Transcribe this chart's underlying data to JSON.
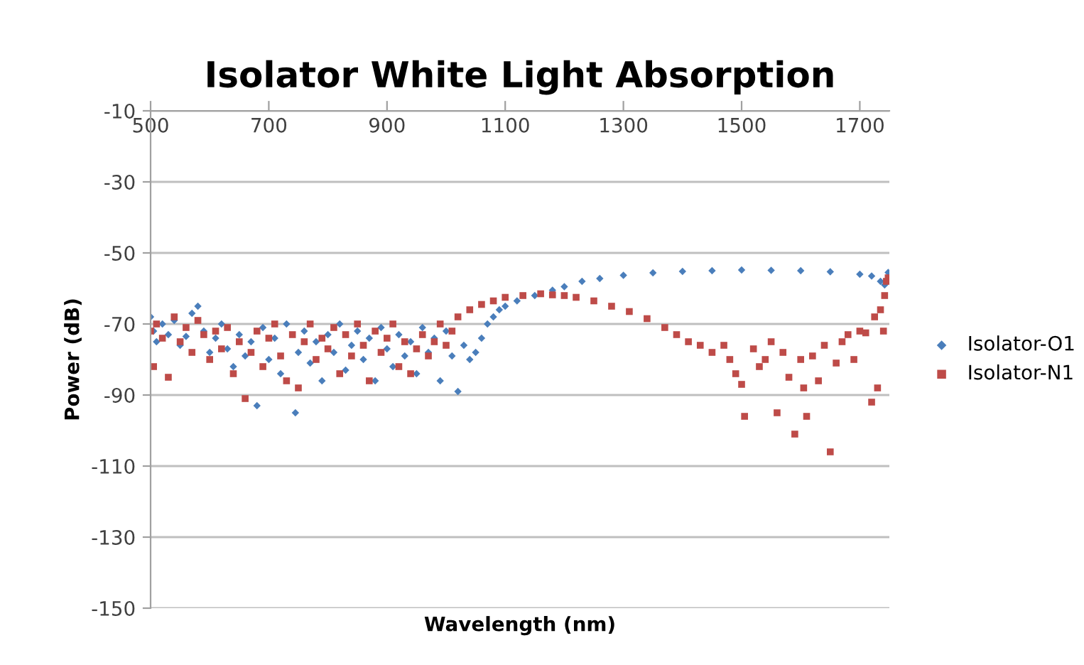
{
  "chart_data": {
    "type": "scatter",
    "title": "Isolator White Light Absorption",
    "xlabel": "Wavelength (nm)",
    "ylabel": "Power (dB)",
    "xlim": [
      500,
      1750
    ],
    "xticks": [
      500,
      700,
      900,
      1100,
      1300,
      1500,
      1700
    ],
    "ylim": [
      -150,
      -10
    ],
    "yticks": [
      -150,
      -130,
      -110,
      -90,
      -70,
      -50,
      -30,
      -10
    ],
    "grid": "y",
    "legend": "right",
    "series": [
      {
        "name": "Isolator-O1",
        "color": "#4a7ebb",
        "marker": "diamond",
        "x": [
          500,
          505,
          510,
          520,
          530,
          540,
          550,
          560,
          570,
          580,
          590,
          600,
          610,
          620,
          630,
          640,
          650,
          660,
          670,
          680,
          690,
          700,
          710,
          720,
          730,
          745,
          750,
          760,
          770,
          780,
          790,
          800,
          810,
          820,
          830,
          840,
          850,
          860,
          870,
          880,
          890,
          900,
          910,
          920,
          930,
          940,
          950,
          960,
          970,
          980,
          990,
          1000,
          1010,
          1020,
          1030,
          1040,
          1050,
          1060,
          1070,
          1080,
          1090,
          1100,
          1120,
          1150,
          1180,
          1200,
          1230,
          1260,
          1300,
          1350,
          1400,
          1450,
          1500,
          1550,
          1600,
          1650,
          1700,
          1720,
          1735,
          1742,
          1748
        ],
        "values": [
          -68,
          -72,
          -75,
          -70,
          -73,
          -69,
          -76,
          -73.5,
          -67,
          -65,
          -72,
          -78,
          -74,
          -70,
          -77,
          -82,
          -73,
          -79,
          -75,
          -93,
          -71,
          -80,
          -74,
          -84,
          -70,
          -95,
          -78,
          -72,
          -81,
          -75,
          -86,
          -73,
          -78,
          -70,
          -83,
          -76,
          -72,
          -80,
          -74,
          -86,
          -71,
          -77,
          -82,
          -73,
          -79,
          -75,
          -84,
          -71,
          -78,
          -74,
          -86,
          -72,
          -79,
          -89,
          -76,
          -80,
          -78,
          -74,
          -70,
          -68,
          -66,
          -65,
          -63.5,
          -62,
          -60.5,
          -59.5,
          -58,
          -57.2,
          -56.3,
          -55.6,
          -55.2,
          -55,
          -54.8,
          -54.9,
          -55,
          -55.3,
          -56,
          -56.5,
          -58,
          -59,
          -55.5
        ]
      },
      {
        "name": "Isolator-N1",
        "color": "#be4b48",
        "marker": "square",
        "x": [
          500,
          505,
          510,
          520,
          530,
          540,
          550,
          560,
          570,
          580,
          590,
          600,
          610,
          620,
          630,
          640,
          650,
          660,
          670,
          680,
          690,
          700,
          710,
          720,
          730,
          740,
          750,
          760,
          770,
          780,
          790,
          800,
          810,
          820,
          830,
          840,
          850,
          860,
          870,
          880,
          890,
          900,
          910,
          920,
          930,
          940,
          950,
          960,
          970,
          980,
          990,
          1000,
          1010,
          1020,
          1040,
          1060,
          1080,
          1100,
          1130,
          1160,
          1180,
          1200,
          1220,
          1250,
          1280,
          1310,
          1340,
          1370,
          1390,
          1410,
          1430,
          1450,
          1470,
          1480,
          1490,
          1500,
          1505,
          1520,
          1530,
          1540,
          1550,
          1560,
          1570,
          1580,
          1590,
          1600,
          1605,
          1610,
          1620,
          1630,
          1640,
          1650,
          1660,
          1670,
          1680,
          1690,
          1700,
          1710,
          1720,
          1725,
          1730,
          1735,
          1740,
          1742,
          1745,
          1748
        ],
        "values": [
          -72,
          -82,
          -70,
          -74,
          -85,
          -68,
          -75,
          -71,
          -78,
          -69,
          -73,
          -80,
          -72,
          -77,
          -71,
          -84,
          -75,
          -91,
          -78,
          -72,
          -82,
          -74,
          -70,
          -79,
          -86,
          -73,
          -88,
          -75,
          -70,
          -80,
          -74,
          -77,
          -71,
          -84,
          -73,
          -79,
          -70,
          -76,
          -86,
          -72,
          -78,
          -74,
          -70,
          -82,
          -75,
          -84,
          -77,
          -73,
          -79,
          -75,
          -70,
          -76,
          -72,
          -68,
          -66,
          -64.5,
          -63.5,
          -62.5,
          -62,
          -61.5,
          -61.8,
          -62,
          -62.5,
          -63.5,
          -65,
          -66.5,
          -68.5,
          -71,
          -73,
          -75,
          -76,
          -78,
          -76,
          -80,
          -84,
          -87,
          -96,
          -77,
          -82,
          -80,
          -75,
          -95,
          -78,
          -85,
          -101,
          -80,
          -88,
          -96,
          -79,
          -86,
          -76,
          -106,
          -81,
          -75,
          -73,
          -80,
          -72,
          -72.5,
          -92,
          -68,
          -88,
          -66,
          -72,
          -62,
          -58,
          -57
        ]
      }
    ]
  }
}
